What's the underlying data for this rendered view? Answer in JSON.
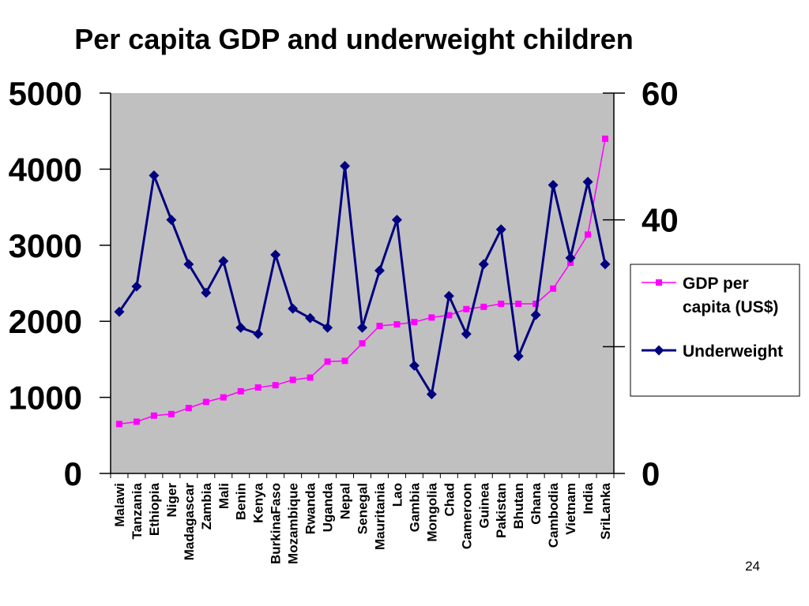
{
  "page": {
    "number": "24"
  },
  "colors": {
    "plot_background": "#c0c0c0",
    "gdp_series": "#ff00ff",
    "underweight_series": "#000080"
  },
  "chart_data": {
    "type": "line",
    "title": "Per capita GDP and underweight children",
    "categories": [
      "Malawi",
      "Tanzania",
      "Ethiopia",
      "Niger",
      "Madagascar",
      "Zambia",
      "Mali",
      "Benin",
      "Kenya",
      "BurkinaFaso",
      "Mozambique",
      "Rwanda",
      "Uganda",
      "Nepal",
      "Senegal",
      "Mauritania",
      "Lao",
      "Gambia",
      "Mongolia",
      "Chad",
      "Cameroon",
      "Guinea",
      "Pakistan",
      "Bhutan",
      "Ghana",
      "Cambodia",
      "Vietnam",
      "India",
      "SriLanka"
    ],
    "y_left": {
      "ylim": [
        0,
        5000
      ],
      "ticks": [
        "0",
        "1000",
        "2000",
        "3000",
        "4000",
        "5000"
      ]
    },
    "y_right": {
      "ylim": [
        0,
        60
      ],
      "ticks": [
        "0",
        "40",
        "60"
      ]
    },
    "grid": false,
    "legend_placement": "right",
    "series": [
      {
        "name": "GDP per capita (US$)",
        "axis": "left",
        "marker": "square",
        "values": [
          650,
          680,
          760,
          780,
          860,
          940,
          1000,
          1080,
          1130,
          1160,
          1230,
          1260,
          1470,
          1480,
          1710,
          1940,
          1960,
          1990,
          2050,
          2080,
          2160,
          2190,
          2230,
          2230,
          2230,
          2430,
          2770,
          3140,
          4400
        ]
      },
      {
        "name": "Underweight",
        "axis": "right",
        "marker": "diamond",
        "values": [
          25.5,
          29.5,
          47,
          40,
          33,
          28.5,
          33.5,
          23,
          22,
          34.5,
          26,
          24.5,
          23,
          48.5,
          23,
          32,
          40,
          17,
          12.5,
          28,
          22,
          33,
          38.5,
          18.5,
          25,
          45.5,
          34,
          46,
          33
        ]
      }
    ]
  }
}
